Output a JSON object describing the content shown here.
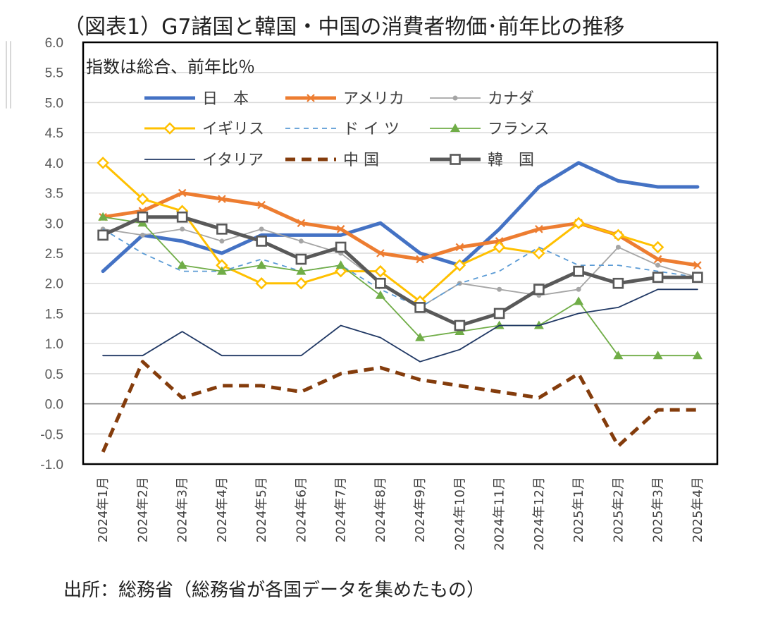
{
  "chart_data": {
    "type": "line",
    "title": "（図表1）G7諸国と韓国・中国の消費者物価･前年比の推移",
    "annotation": "指数は総合、前年比％",
    "source": "出所：総務省（総務省が各国データを集めたもの）",
    "ylim": [
      -1.0,
      6.0
    ],
    "yticks": [
      "6.0",
      "5.5",
      "5.0",
      "4.5",
      "4.0",
      "3.5",
      "3.0",
      "2.5",
      "2.0",
      "1.5",
      "1.0",
      "0.5",
      "0.0",
      "-0.5",
      "-1.0"
    ],
    "categories": [
      "2024年1月",
      "2024年2月",
      "2024年3月",
      "2024年4月",
      "2024年5月",
      "2024年6月",
      "2024年7月",
      "2024年8月",
      "2024年9月",
      "2024年10月",
      "2024年11月",
      "2024年12月",
      "2025年1月",
      "2025年2月",
      "2025年3月",
      "2025年4月"
    ],
    "grid": true,
    "legend": "top-left",
    "series": [
      {
        "name": "日　本",
        "color": "#4472C4",
        "marker": "none",
        "dash": "solid",
        "weight": "thick",
        "values": [
          2.2,
          2.8,
          2.7,
          2.5,
          2.8,
          2.8,
          2.8,
          3.0,
          2.5,
          2.3,
          2.9,
          3.6,
          4.0,
          3.7,
          3.6,
          3.6
        ]
      },
      {
        "name": "アメリカ",
        "color": "#ED7D31",
        "marker": "x",
        "dash": "solid",
        "weight": "thick",
        "values": [
          3.1,
          3.2,
          3.5,
          3.4,
          3.3,
          3.0,
          2.9,
          2.5,
          2.4,
          2.6,
          2.7,
          2.9,
          3.0,
          2.8,
          2.4,
          2.3
        ]
      },
      {
        "name": "カナダ",
        "color": "#A5A5A5",
        "marker": "circle",
        "dash": "solid",
        "weight": "thin",
        "values": [
          2.9,
          2.8,
          2.9,
          2.7,
          2.9,
          2.7,
          2.5,
          2.0,
          1.6,
          2.0,
          1.9,
          1.8,
          1.9,
          2.6,
          2.3,
          2.1
        ]
      },
      {
        "name": "イギリス",
        "color": "#FFC000",
        "marker": "diamond",
        "dash": "solid",
        "weight": "medium",
        "values": [
          4.0,
          3.4,
          3.2,
          2.3,
          2.0,
          2.0,
          2.2,
          2.2,
          1.7,
          2.3,
          2.6,
          2.5,
          3.0,
          2.8,
          2.6,
          null
        ]
      },
      {
        "name": "ド イ ツ",
        "color": "#5B9BD5",
        "marker": "none",
        "dash": "dashed",
        "weight": "thin",
        "values": [
          2.9,
          2.5,
          2.2,
          2.2,
          2.4,
          2.2,
          2.3,
          1.9,
          1.6,
          2.0,
          2.2,
          2.6,
          2.3,
          2.3,
          2.2,
          2.1
        ]
      },
      {
        "name": "フランス",
        "color": "#70AD47",
        "marker": "triangle",
        "dash": "solid",
        "weight": "thin",
        "values": [
          3.1,
          3.0,
          2.3,
          2.2,
          2.3,
          2.2,
          2.3,
          1.8,
          1.1,
          1.2,
          1.3,
          1.3,
          1.7,
          0.8,
          0.8,
          0.8
        ]
      },
      {
        "name": "イタリア",
        "color": "#203864",
        "marker": "none",
        "dash": "solid",
        "weight": "thin",
        "values": [
          0.8,
          0.8,
          1.2,
          0.8,
          0.8,
          0.8,
          1.3,
          1.1,
          0.7,
          0.9,
          1.3,
          1.3,
          1.5,
          1.6,
          1.9,
          1.9
        ]
      },
      {
        "name": "中 国",
        "color": "#843C0C",
        "marker": "none",
        "dash": "bigdash",
        "weight": "thick",
        "values": [
          -0.8,
          0.7,
          0.1,
          0.3,
          0.3,
          0.2,
          0.5,
          0.6,
          0.4,
          0.3,
          0.2,
          0.1,
          0.5,
          -0.7,
          -0.1,
          -0.1
        ]
      },
      {
        "name": "韓　国",
        "color": "#595959",
        "marker": "square",
        "dash": "solid",
        "weight": "thick",
        "values": [
          2.8,
          3.1,
          3.1,
          2.9,
          2.7,
          2.4,
          2.6,
          2.0,
          1.6,
          1.3,
          1.5,
          1.9,
          2.2,
          2.0,
          2.1,
          2.1
        ]
      }
    ]
  }
}
